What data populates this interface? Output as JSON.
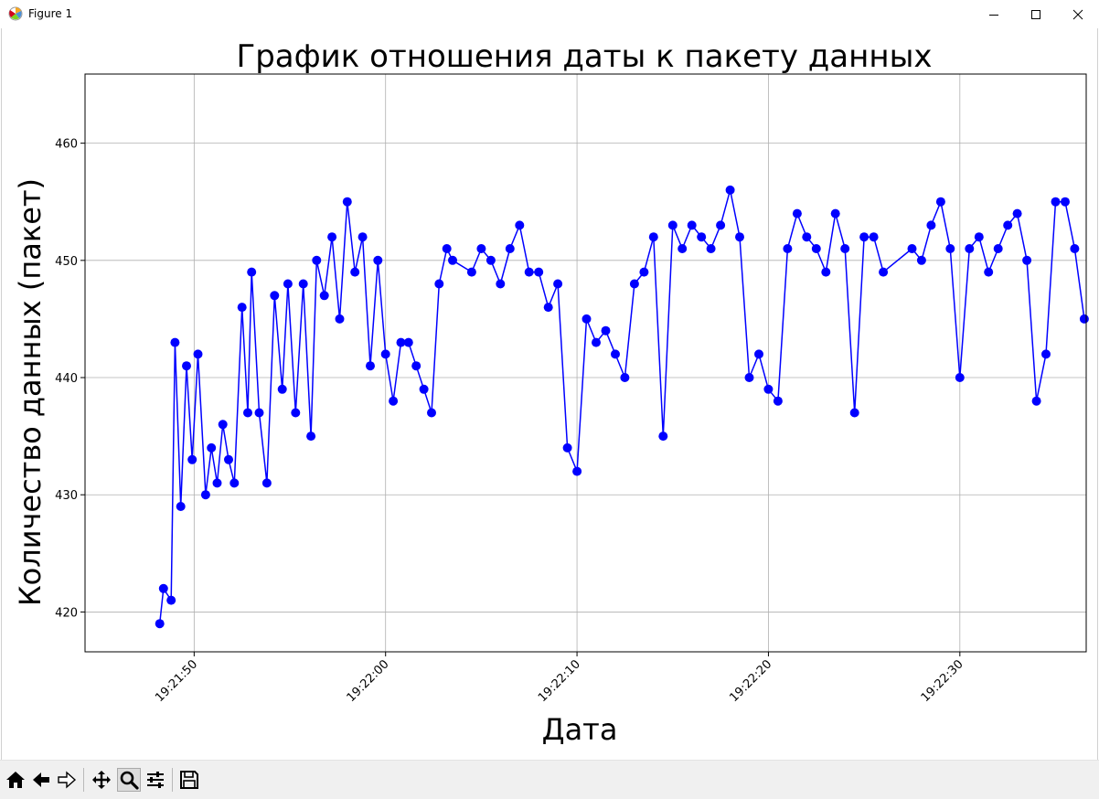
{
  "window": {
    "title": "Figure 1"
  },
  "icons": {
    "app": "matplotlib-icon",
    "minimize": "minimize-icon",
    "maximize": "maximize-icon",
    "close": "close-icon"
  },
  "toolbar": {
    "buttons": [
      {
        "name": "home-button",
        "icon": "home-icon"
      },
      {
        "name": "back-button",
        "icon": "arrow-left-icon"
      },
      {
        "name": "forward-button",
        "icon": "arrow-right-icon"
      },
      {
        "name": "pan-button",
        "icon": "move-icon"
      },
      {
        "name": "zoom-button",
        "icon": "magnifier-icon",
        "active": true
      },
      {
        "name": "configure-subplots-button",
        "icon": "sliders-icon"
      },
      {
        "name": "save-button",
        "icon": "floppy-disk-icon"
      }
    ]
  },
  "chart_data": {
    "type": "line",
    "title": "График отношения даты к пакету данных",
    "xlabel": "Дата",
    "ylabel": "Количество данных (пакет)",
    "xlim": [
      "19:21:44.3",
      "19:22:36.6"
    ],
    "ylim": [
      416.6,
      465.9
    ],
    "xticks": [
      "19:21:50",
      "19:22:00",
      "19:22:10",
      "19:22:20",
      "19:22:30"
    ],
    "yticks": [
      420,
      430,
      440,
      450,
      460
    ],
    "grid": true,
    "color": "#0000ff",
    "marker": "circle",
    "series": [
      {
        "x": [
          "19:21:48.2",
          "19:21:48.4",
          "19:21:48.8",
          "19:21:49.0",
          "19:21:49.3",
          "19:21:49.6",
          "19:21:49.9",
          "19:21:50.2",
          "19:21:50.6",
          "19:21:50.9",
          "19:21:51.2",
          "19:21:51.5",
          "19:21:51.8",
          "19:21:52.1",
          "19:21:52.5",
          "19:21:52.8",
          "19:21:53.0",
          "19:21:53.4",
          "19:21:53.8",
          "19:21:54.2",
          "19:21:54.6",
          "19:21:54.9",
          "19:21:55.3",
          "19:21:55.7",
          "19:21:56.1",
          "19:21:56.4",
          "19:21:56.8",
          "19:21:57.2",
          "19:21:57.6",
          "19:21:58.0",
          "19:21:58.4",
          "19:21:58.8",
          "19:21:59.2",
          "19:21:59.6",
          "19:22:00.0",
          "19:22:00.4",
          "19:22:00.8",
          "19:22:01.2",
          "19:22:01.6",
          "19:22:02.0",
          "19:22:02.4",
          "19:22:02.8",
          "19:22:03.2",
          "19:22:03.5",
          "19:22:04.5",
          "19:22:05.0",
          "19:22:05.5",
          "19:22:06.0",
          "19:22:06.5",
          "19:22:07.0",
          "19:22:07.5",
          "19:22:08.0",
          "19:22:08.5",
          "19:22:09.0",
          "19:22:09.5",
          "19:22:10.0",
          "19:22:10.5",
          "19:22:11.0",
          "19:22:11.5",
          "19:22:12.0",
          "19:22:12.5",
          "19:22:13.0",
          "19:22:13.5",
          "19:22:14.0",
          "19:22:14.5",
          "19:22:15.0",
          "19:22:15.5",
          "19:22:16.0",
          "19:22:16.5",
          "19:22:17.0",
          "19:22:17.5",
          "19:22:18.0",
          "19:22:18.5",
          "19:22:19.0",
          "19:22:19.5",
          "19:22:20.0",
          "19:22:20.5",
          "19:22:21.0",
          "19:22:21.5",
          "19:22:22.0",
          "19:22:22.5",
          "19:22:23.0",
          "19:22:23.5",
          "19:22:24.0",
          "19:22:24.5",
          "19:22:25.0",
          "19:22:25.5",
          "19:22:26.0",
          "19:22:27.5",
          "19:22:28.0",
          "19:22:28.5",
          "19:22:29.0",
          "19:22:29.5",
          "19:22:30.0",
          "19:22:30.5",
          "19:22:31.0",
          "19:22:31.5",
          "19:22:32.0",
          "19:22:32.5",
          "19:22:33.0",
          "19:22:33.5",
          "19:22:34.0",
          "19:22:34.5",
          "19:22:35.0",
          "19:22:35.5",
          "19:22:36.0",
          "19:22:36.5"
        ],
        "y": [
          419,
          422,
          421,
          443,
          429,
          441,
          433,
          442,
          430,
          434,
          431,
          436,
          433,
          431,
          446,
          437,
          449,
          437,
          431,
          447,
          439,
          448,
          437,
          448,
          435,
          450,
          447,
          452,
          445,
          455,
          449,
          452,
          441,
          450,
          442,
          438,
          443,
          443,
          441,
          439,
          437,
          448,
          451,
          450,
          449,
          451,
          450,
          448,
          451,
          453,
          449,
          449,
          446,
          448,
          434,
          432,
          445,
          443,
          444,
          442,
          440,
          448,
          449,
          452,
          435,
          453,
          451,
          453,
          452,
          451,
          453,
          456,
          452,
          440,
          442,
          439,
          438,
          451,
          454,
          452,
          451,
          449,
          454,
          451,
          437,
          452,
          452,
          449,
          451,
          450,
          453,
          455,
          451,
          440,
          451,
          452,
          449,
          451,
          453,
          454,
          450,
          438,
          442,
          455,
          455,
          451,
          445
        ]
      }
    ]
  }
}
